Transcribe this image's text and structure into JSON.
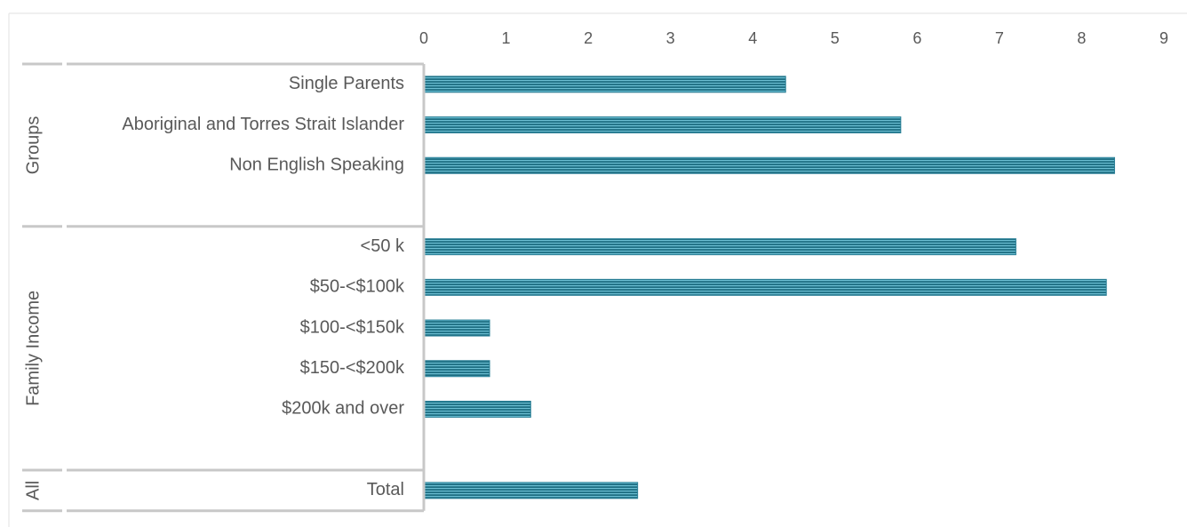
{
  "chart_data": {
    "type": "bar",
    "color": "#2a7f96",
    "xlim": [
      0,
      9
    ],
    "xticks": [
      0,
      1,
      2,
      3,
      4,
      5,
      6,
      7,
      8,
      9
    ],
    "groups": [
      {
        "name": "Groups",
        "categories": [
          "Single Parents",
          "Aboriginal and Torres Strait Islander",
          "Non English Speaking"
        ],
        "values": [
          4.4,
          5.8,
          8.4
        ]
      },
      {
        "name": "Family Income",
        "categories": [
          "<50 k",
          "$50-<$100k",
          "$100-<$150k",
          "$150-<$200k",
          "$200k and over"
        ],
        "values": [
          7.2,
          8.3,
          0.8,
          0.8,
          1.3
        ]
      },
      {
        "name": "All",
        "categories": [
          "Total"
        ],
        "values": [
          2.6
        ]
      }
    ]
  }
}
